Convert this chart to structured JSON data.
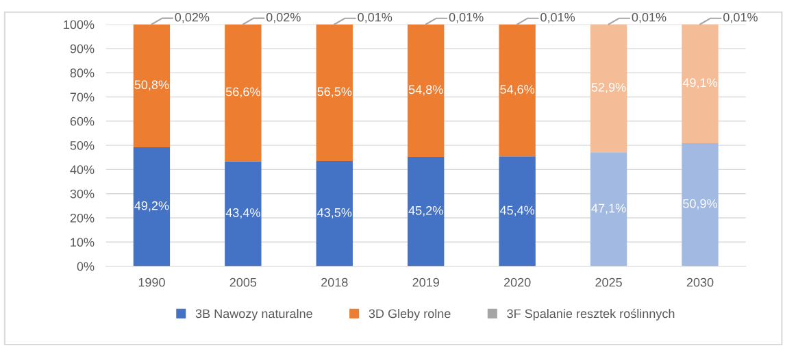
{
  "chart_data": {
    "type": "bar",
    "stacked": true,
    "categories": [
      "1990",
      "2005",
      "2018",
      "2019",
      "2020",
      "2025",
      "2030"
    ],
    "series": [
      {
        "name": "3B Nawozy naturalne",
        "color": "#4472c4",
        "colors": [
          "#4472c4",
          "#4472c4",
          "#4472c4",
          "#4472c4",
          "#4472c4",
          "#a2b9e2",
          "#a2b9e2"
        ],
        "values": [
          49.2,
          43.4,
          43.5,
          45.2,
          45.4,
          47.1,
          50.9
        ],
        "value_labels": [
          "49,2%",
          "43,4%",
          "43,5%",
          "45,2%",
          "45,4%",
          "47,1%",
          "50,9%"
        ]
      },
      {
        "name": "3D Gleby rolne",
        "color": "#ed7d31",
        "colors": [
          "#ed7d31",
          "#ed7d31",
          "#ed7d31",
          "#ed7d31",
          "#ed7d31",
          "#f5bd97",
          "#f5bd97"
        ],
        "values": [
          50.8,
          56.6,
          56.5,
          54.8,
          54.6,
          52.9,
          49.1
        ],
        "value_labels": [
          "50,8%",
          "56,6%",
          "56,5%",
          "54,8%",
          "54,6%",
          "52,9%",
          "49,1%"
        ]
      },
      {
        "name": "3F Spalanie resztek roślinnych",
        "color": "#a5a5a5",
        "values": [
          0.02,
          0.02,
          0.01,
          0.01,
          0.01,
          0.01,
          0.01
        ],
        "value_labels": [
          "0,02%",
          "0,02%",
          "0,01%",
          "0,01%",
          "0,01%",
          "0,01%",
          "0,01%"
        ]
      }
    ],
    "ylim": [
      0,
      100
    ],
    "yticks": [
      {
        "value": 0,
        "label": "0%"
      },
      {
        "value": 10,
        "label": "10%"
      },
      {
        "value": 20,
        "label": "20%"
      },
      {
        "value": 30,
        "label": "30%"
      },
      {
        "value": 40,
        "label": "40%"
      },
      {
        "value": 50,
        "label": "50%"
      },
      {
        "value": 60,
        "label": "60%"
      },
      {
        "value": 70,
        "label": "70%"
      },
      {
        "value": 80,
        "label": "80%"
      },
      {
        "value": 90,
        "label": "90%"
      },
      {
        "value": 100,
        "label": "100%"
      }
    ],
    "grid": "y",
    "legend": "bottom"
  }
}
